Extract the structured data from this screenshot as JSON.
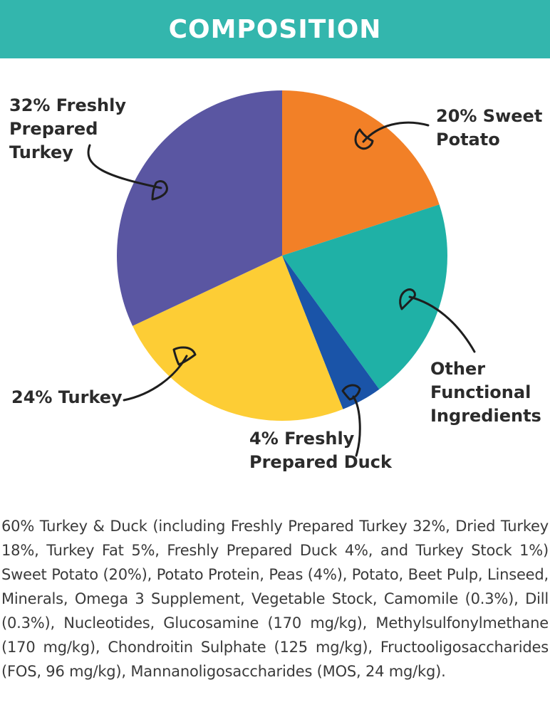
{
  "header": {
    "title": "COMPOSITION",
    "background_color": "#33b6ad"
  },
  "chart_data": {
    "type": "pie",
    "slices": [
      {
        "label": "20% Sweet Potato",
        "value": 20,
        "color": "#f28027"
      },
      {
        "label": "Other Functional Ingredients",
        "value": 20,
        "color": "#1fb1a6"
      },
      {
        "label": "4% Freshly Prepared Duck",
        "value": 4,
        "color": "#1a54a8"
      },
      {
        "label": "24% Turkey",
        "value": 24,
        "color": "#fdcd35"
      },
      {
        "label": "32% Freshly Prepared Turkey",
        "value": 32,
        "color": "#5a56a2"
      }
    ],
    "labels": {
      "turkey32": [
        "32% Freshly",
        "Prepared",
        "Turkey"
      ],
      "sweet_potato": [
        "20% Sweet",
        "Potato"
      ],
      "other": [
        "Other",
        "Functional",
        "Ingredients"
      ],
      "duck": [
        "4% Freshly",
        "Prepared Duck"
      ],
      "turkey24": [
        "24% Turkey"
      ]
    }
  },
  "composition_text": "60% Turkey & Duck (including Freshly Prepared Turkey 32%, Dried Turkey 18%, Turkey Fat 5%, Freshly Prepared Duck 4%, and Turkey Stock 1%) Sweet Potato (20%), Potato Protein, Peas (4%), Potato, Beet Pulp, Linseed, Minerals, Omega 3 Supplement, Vegetable Stock, Camomile (0.3%), Dill (0.3%), Nucleotides, Glucosamine (170 mg/kg), Methylsulfonylmethane (170 mg/kg), Chondroitin Sulphate (125 mg/kg), Fructooligosaccharides (FOS, 96 mg/kg), Mannanoligosaccharides (MOS, 24 mg/kg)."
}
